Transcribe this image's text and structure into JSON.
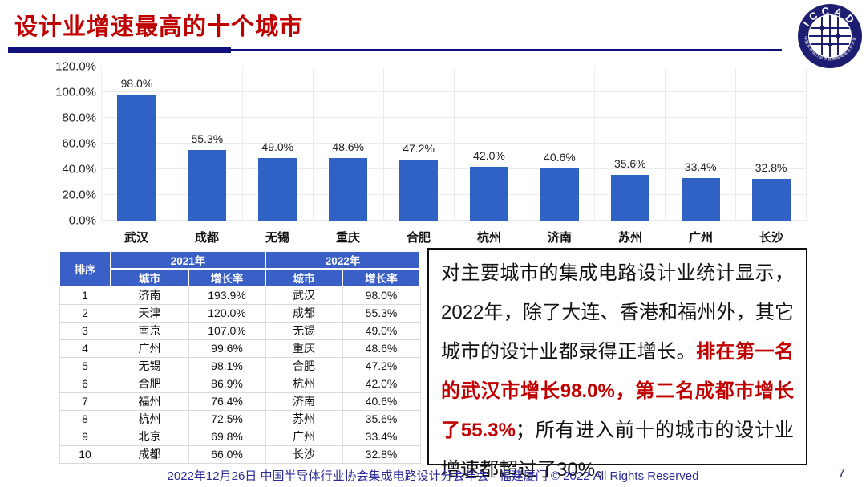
{
  "slide": {
    "title": "设计业增速最高的十个城市",
    "footer": "2022年12月26日 中国半导体行业协会集成电路设计分会年会 · 福建厦门 © 2022 All Rights Reserved",
    "page_number": "7"
  },
  "logo": {
    "name": "ICCAD",
    "ring_text": "中国半导体行业协会集成电路设计分会"
  },
  "chart_data": {
    "type": "bar",
    "title": "",
    "xlabel": "",
    "ylabel": "",
    "categories": [
      "武汉",
      "成都",
      "无锡",
      "重庆",
      "合肥",
      "杭州",
      "济南",
      "苏州",
      "广州",
      "长沙"
    ],
    "values": [
      98.0,
      55.3,
      49.0,
      48.6,
      47.2,
      42.0,
      40.6,
      35.6,
      33.4,
      32.8
    ],
    "value_labels": [
      "98.0%",
      "55.3%",
      "49.0%",
      "48.6%",
      "47.2%",
      "42.0%",
      "40.6%",
      "35.6%",
      "33.4%",
      "32.8%"
    ],
    "ylim": [
      0,
      120
    ],
    "ytick_labels": [
      "120.0%",
      "100.0%",
      "80.0%",
      "60.0%",
      "40.0%",
      "20.0%",
      "0.0%"
    ],
    "grid": true,
    "legend": false,
    "bar_color": "#2f62c4"
  },
  "table": {
    "header": {
      "rank": "排序",
      "year_2021": "2021年",
      "year_2022": "2022年",
      "city": "城市",
      "growth": "增长率"
    },
    "rows": [
      {
        "rank": "1",
        "city_2021": "济南",
        "growth_2021": "193.9%",
        "city_2022": "武汉",
        "growth_2022": "98.0%"
      },
      {
        "rank": "2",
        "city_2021": "天津",
        "growth_2021": "120.0%",
        "city_2022": "成都",
        "growth_2022": "55.3%"
      },
      {
        "rank": "3",
        "city_2021": "南京",
        "growth_2021": "107.0%",
        "city_2022": "无锡",
        "growth_2022": "49.0%"
      },
      {
        "rank": "4",
        "city_2021": "广州",
        "growth_2021": "99.6%",
        "city_2022": "重庆",
        "growth_2022": "48.6%"
      },
      {
        "rank": "5",
        "city_2021": "无锡",
        "growth_2021": "98.1%",
        "city_2022": "合肥",
        "growth_2022": "47.2%"
      },
      {
        "rank": "6",
        "city_2021": "合肥",
        "growth_2021": "86.9%",
        "city_2022": "杭州",
        "growth_2022": "42.0%"
      },
      {
        "rank": "7",
        "city_2021": "福州",
        "growth_2021": "76.4%",
        "city_2022": "济南",
        "growth_2022": "40.6%"
      },
      {
        "rank": "8",
        "city_2021": "杭州",
        "growth_2021": "72.5%",
        "city_2022": "苏州",
        "growth_2022": "35.6%"
      },
      {
        "rank": "9",
        "city_2021": "北京",
        "growth_2021": "69.8%",
        "city_2022": "广州",
        "growth_2022": "33.4%"
      },
      {
        "rank": "10",
        "city_2021": "成都",
        "growth_2021": "66.0%",
        "city_2022": "长沙",
        "growth_2022": "32.8%"
      }
    ]
  },
  "textbox": {
    "segment_black_1": "对主要城市的集成电路设计业统计显示，2022年，除了大连、香港和福州外，其它城市的设计业都录得正增长。",
    "segment_red": "排在第一名的武汉市增长98.0%，第二名成都市增长了55.3%",
    "segment_black_2": "；所有进入前十的城市的设计业增速都超过了30%。"
  },
  "colors": {
    "title_red": "#c00000",
    "bar_blue": "#2f62c4",
    "table_header_blue": "#3a5fc6",
    "rule_navy": "#10107e",
    "footer_navy": "#2b2b9a"
  }
}
